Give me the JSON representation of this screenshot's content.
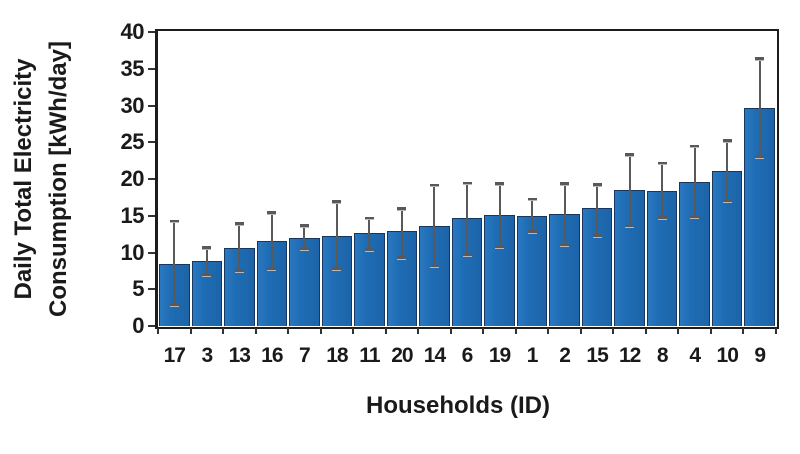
{
  "chart_data": {
    "type": "bar",
    "title": "",
    "xlabel": "Households (ID)",
    "ylabel": "Daily Total Electricity Consumption [kWh/day]",
    "ylabel_lines": [
      "Daily Total Electricity",
      "Consumption [kWh/day]"
    ],
    "ylim": [
      0,
      40
    ],
    "yticks": [
      0,
      5,
      10,
      15,
      20,
      25,
      30,
      35,
      40
    ],
    "grid": false,
    "legend": false,
    "categories": [
      "17",
      "3",
      "13",
      "16",
      "7",
      "18",
      "11",
      "20",
      "14",
      "6",
      "19",
      "1",
      "2",
      "15",
      "12",
      "8",
      "4",
      "10",
      "9"
    ],
    "values": [
      8.5,
      8.9,
      10.6,
      11.5,
      12.0,
      12.2,
      12.6,
      12.9,
      13.6,
      14.7,
      15.1,
      15.0,
      15.3,
      16.0,
      18.5,
      18.4,
      19.6,
      21.1,
      29.7
    ],
    "error_low": [
      2.9,
      7.0,
      7.5,
      7.8,
      10.5,
      7.8,
      10.4,
      9.3,
      8.1,
      9.7,
      10.8,
      12.8,
      11.0,
      12.3,
      13.6,
      14.7,
      14.8,
      17.0,
      23.0
    ],
    "error_high": [
      14.3,
      10.7,
      14.0,
      15.5,
      13.7,
      17.0,
      14.7,
      16.0,
      19.2,
      19.5,
      19.4,
      17.3,
      19.4,
      19.3,
      23.4,
      22.2,
      24.5,
      25.3,
      36.4
    ],
    "colors": {
      "bar_fill": "#1F6DB5",
      "bar_border": "#17375E",
      "error_bar": "#595959",
      "axis": "#1C1C1C",
      "text": "#1A1A1A",
      "background": "#FFFFFF"
    }
  }
}
